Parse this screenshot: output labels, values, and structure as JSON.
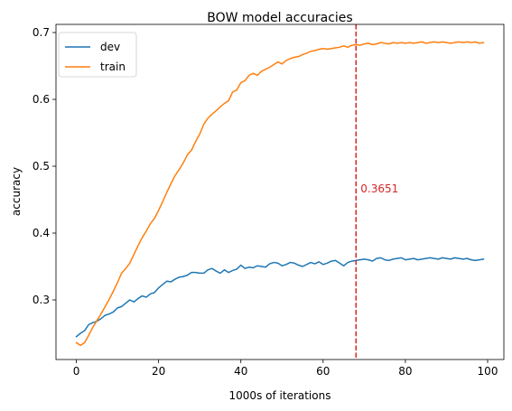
{
  "chart_data": {
    "type": "line",
    "title": "BOW model accuracies",
    "xlabel": "1000s of iterations",
    "ylabel": "accuracy",
    "xlim": [
      -4.95,
      103.95
    ],
    "ylim": [
      0.2108,
      0.7122
    ],
    "xticks": [
      0,
      20,
      40,
      60,
      80,
      100
    ],
    "yticks": [
      0.3,
      0.4,
      0.5,
      0.6,
      0.7
    ],
    "xtick_labels": [
      "0",
      "20",
      "40",
      "60",
      "80",
      "100"
    ],
    "ytick_labels": [
      "0.3",
      "0.4",
      "0.5",
      "0.6",
      "0.7"
    ],
    "grid": false,
    "legend_position": "top-left",
    "x": [
      0,
      1,
      2,
      3,
      4,
      5,
      6,
      7,
      8,
      9,
      10,
      11,
      12,
      13,
      14,
      15,
      16,
      17,
      18,
      19,
      20,
      21,
      22,
      23,
      24,
      25,
      26,
      27,
      28,
      29,
      30,
      31,
      32,
      33,
      34,
      35,
      36,
      37,
      38,
      39,
      40,
      41,
      42,
      43,
      44,
      45,
      46,
      47,
      48,
      49,
      50,
      51,
      52,
      53,
      54,
      55,
      56,
      57,
      58,
      59,
      60,
      61,
      62,
      63,
      64,
      65,
      66,
      67,
      68,
      69,
      70,
      71,
      72,
      73,
      74,
      75,
      76,
      77,
      78,
      79,
      80,
      81,
      82,
      83,
      84,
      85,
      86,
      87,
      88,
      89,
      90,
      91,
      92,
      93,
      94,
      95,
      96,
      97,
      98,
      99
    ],
    "series": [
      {
        "name": "dev",
        "color": "#1f77b4",
        "values": [
          0.245,
          0.25,
          0.254,
          0.263,
          0.266,
          0.268,
          0.272,
          0.277,
          0.279,
          0.282,
          0.288,
          0.29,
          0.295,
          0.3,
          0.297,
          0.302,
          0.306,
          0.304,
          0.309,
          0.311,
          0.318,
          0.323,
          0.328,
          0.327,
          0.331,
          0.334,
          0.335,
          0.337,
          0.341,
          0.341,
          0.34,
          0.34,
          0.345,
          0.347,
          0.343,
          0.34,
          0.345,
          0.341,
          0.344,
          0.346,
          0.352,
          0.347,
          0.349,
          0.348,
          0.351,
          0.35,
          0.349,
          0.354,
          0.356,
          0.355,
          0.351,
          0.353,
          0.356,
          0.355,
          0.352,
          0.35,
          0.353,
          0.356,
          0.354,
          0.357,
          0.353,
          0.355,
          0.358,
          0.359,
          0.355,
          0.351,
          0.356,
          0.358,
          0.359,
          0.36,
          0.361,
          0.36,
          0.358,
          0.362,
          0.363,
          0.36,
          0.359,
          0.361,
          0.362,
          0.363,
          0.36,
          0.361,
          0.362,
          0.36,
          0.361,
          0.362,
          0.363,
          0.362,
          0.361,
          0.363,
          0.362,
          0.361,
          0.363,
          0.362,
          0.361,
          0.362,
          0.36,
          0.359,
          0.36,
          0.361
        ]
      },
      {
        "name": "train",
        "color": "#ff7f0e",
        "values": [
          0.236,
          0.232,
          0.236,
          0.247,
          0.259,
          0.269,
          0.279,
          0.29,
          0.301,
          0.313,
          0.326,
          0.34,
          0.347,
          0.355,
          0.368,
          0.381,
          0.393,
          0.403,
          0.414,
          0.422,
          0.434,
          0.447,
          0.461,
          0.474,
          0.486,
          0.495,
          0.505,
          0.517,
          0.524,
          0.537,
          0.548,
          0.563,
          0.572,
          0.578,
          0.583,
          0.589,
          0.594,
          0.598,
          0.611,
          0.614,
          0.625,
          0.628,
          0.636,
          0.639,
          0.636,
          0.642,
          0.645,
          0.648,
          0.652,
          0.656,
          0.653,
          0.658,
          0.661,
          0.663,
          0.664,
          0.667,
          0.669,
          0.672,
          0.673,
          0.675,
          0.676,
          0.675,
          0.676,
          0.677,
          0.678,
          0.68,
          0.678,
          0.681,
          0.682,
          0.681,
          0.683,
          0.684,
          0.682,
          0.683,
          0.685,
          0.684,
          0.683,
          0.685,
          0.684,
          0.685,
          0.684,
          0.685,
          0.684,
          0.685,
          0.686,
          0.684,
          0.685,
          0.686,
          0.685,
          0.686,
          0.685,
          0.684,
          0.685,
          0.686,
          0.685,
          0.686,
          0.685,
          0.686,
          0.684,
          0.685
        ]
      }
    ],
    "vline": {
      "x": 68,
      "color": "#d62728",
      "style": "dashed",
      "label": "0.3651",
      "label_y": 0.466
    }
  }
}
